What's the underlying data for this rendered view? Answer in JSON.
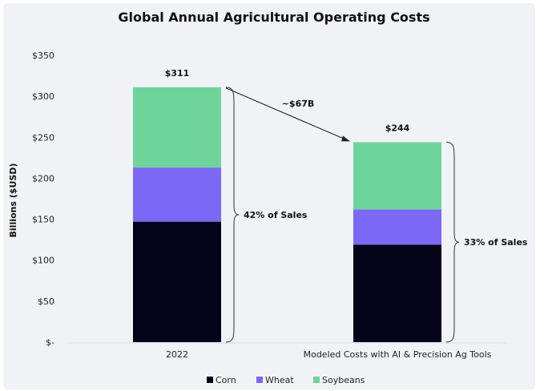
{
  "chart_data": {
    "type": "bar",
    "stacked": true,
    "title": "Global Annual Agricultural Operating Costs",
    "xlabel": "",
    "ylabel": "Billions ($USD)",
    "ylim": [
      0,
      350
    ],
    "yticks": [
      0,
      50,
      100,
      150,
      200,
      250,
      300,
      350
    ],
    "ytick_labels": [
      "$-",
      "$50",
      "$100",
      "$150",
      "$200",
      "$250",
      "$300",
      "$350"
    ],
    "categories": [
      "2022",
      "Modeled Costs with AI & Precision Ag Tools"
    ],
    "series": [
      {
        "name": "Corn",
        "color": "#03031a",
        "values": [
          147,
          119
        ]
      },
      {
        "name": "Wheat",
        "color": "#7b68f4",
        "values": [
          66,
          43
        ]
      },
      {
        "name": "Soybeans",
        "color": "#6fd49b",
        "values": [
          98,
          82
        ]
      }
    ],
    "total_labels": [
      "$311",
      "$244"
    ],
    "totals": [
      311,
      244
    ],
    "annotations": {
      "difference": "~$67B",
      "share_labels": [
        "42% of Sales",
        "33% of Sales"
      ]
    },
    "legend_position": "bottom",
    "grid": false
  }
}
